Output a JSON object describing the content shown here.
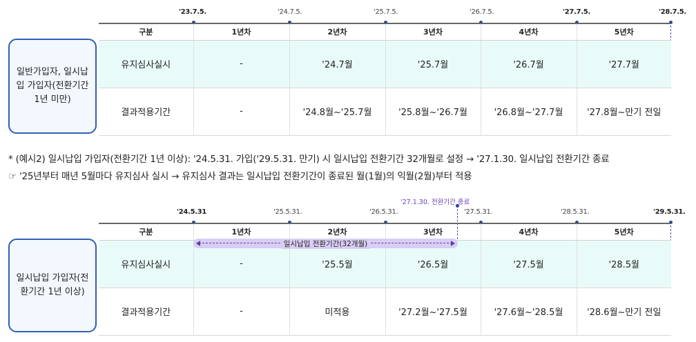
{
  "section1": {
    "ticks": [
      "'23.7.5.",
      "'24.7.5.",
      "'25.7.5.",
      "'26.7.5.",
      "'27.7.5.",
      "'28.7.5."
    ],
    "row_label": "일반가입자, 일시납입 가입자(전환기간 1년 미만)",
    "header": [
      "구분",
      "1년차",
      "2년차",
      "3년차",
      "4년차",
      "5년차"
    ],
    "row1": [
      "유지심사실시",
      "-",
      "'24.7월",
      "'25.7월",
      "'26.7월",
      "'27.7월"
    ],
    "row2": [
      "결과적용기간",
      "-",
      "'24.8월~'25.7월",
      "'25.8월~'26.7월",
      "'26.8월~'27.7월",
      "'27.8월~만기 전일"
    ]
  },
  "notes": {
    "line1": "* (예시2) 일시납입 가입자(전환기간 1년 이상): '24.5.31. 가입('29.5.31. 만기) 시 일시납입 전환기간 32개월로 설정 → '27.1.30. 일시납입 전환기간 종료",
    "line2": "☞ '25년부터 매년 5월마다 유지심사 실시 → 유지심사 결과는 일시납입 전환기간이 종료된 월(1월)의 익월(2월)부터 적용"
  },
  "section2": {
    "ticks": [
      "'24.5.31",
      "'25.5.31.",
      "'26.5.31.",
      "'27.5.31.",
      "'28.5.31.",
      "'29.5.31."
    ],
    "end_annotation": "'27.1.30. 전환기간 종료",
    "bar_label": "일시납입 전환기간(32개월)",
    "row_label": "일시납입 가입자(전환기간 1년 이상)",
    "header": [
      "구분",
      "1년차",
      "2년차",
      "3년차",
      "4년차",
      "5년차"
    ],
    "row1": [
      "유지심사실시",
      "-",
      "'25.5월",
      "'26.5월",
      "'27.5월",
      "'28.5월"
    ],
    "row2": [
      "결과적용기간",
      "-",
      "미적용",
      "'27.2월~'27.5월",
      "'27.6월~'28.5월",
      "'28.6월~만기 전일"
    ]
  },
  "colors": {
    "accent_blue": "#2f5fb3",
    "tick_blue": "#2c3f9c",
    "highlight_row": "#e9fbf9",
    "period_bar": "#d8cdf3",
    "purple_text": "#6a3fb5"
  }
}
